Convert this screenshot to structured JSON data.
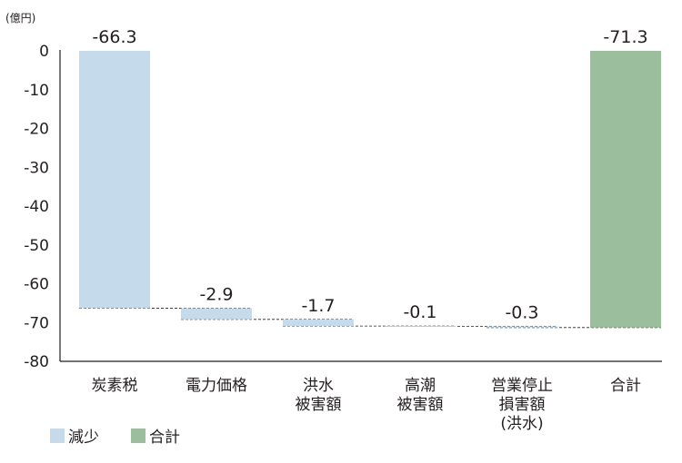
{
  "chart_data": {
    "type": "bar",
    "subtype": "waterfall",
    "unit": "(億円)",
    "ylim": [
      -80,
      0
    ],
    "yticks": [
      0,
      -10,
      -20,
      -30,
      -40,
      -50,
      -60,
      -70,
      -80
    ],
    "categories": [
      [
        "炭素税"
      ],
      [
        "電力価格"
      ],
      [
        "洪水",
        "被害額"
      ],
      [
        "高潮",
        "被害額"
      ],
      [
        "営業停止",
        "損害額",
        "(洪水)"
      ],
      [
        "合計"
      ]
    ],
    "values": [
      -66.3,
      -2.9,
      -1.7,
      -0.1,
      -0.3,
      -71.3
    ],
    "value_labels": [
      "-66.3",
      "-2.9",
      "-1.7",
      "-0.1",
      "-0.3",
      "-71.3"
    ],
    "kinds": [
      "decrease",
      "decrease",
      "decrease",
      "decrease",
      "decrease",
      "total"
    ],
    "colors": {
      "decrease": "#c5dbeb",
      "total": "#9bbf9d",
      "axis": "#231f20",
      "connector": "#231f20"
    },
    "legend": [
      {
        "label": "減少",
        "kind": "decrease"
      },
      {
        "label": "合計",
        "kind": "total"
      }
    ],
    "legend_position": "bottom-left",
    "grid": false
  }
}
